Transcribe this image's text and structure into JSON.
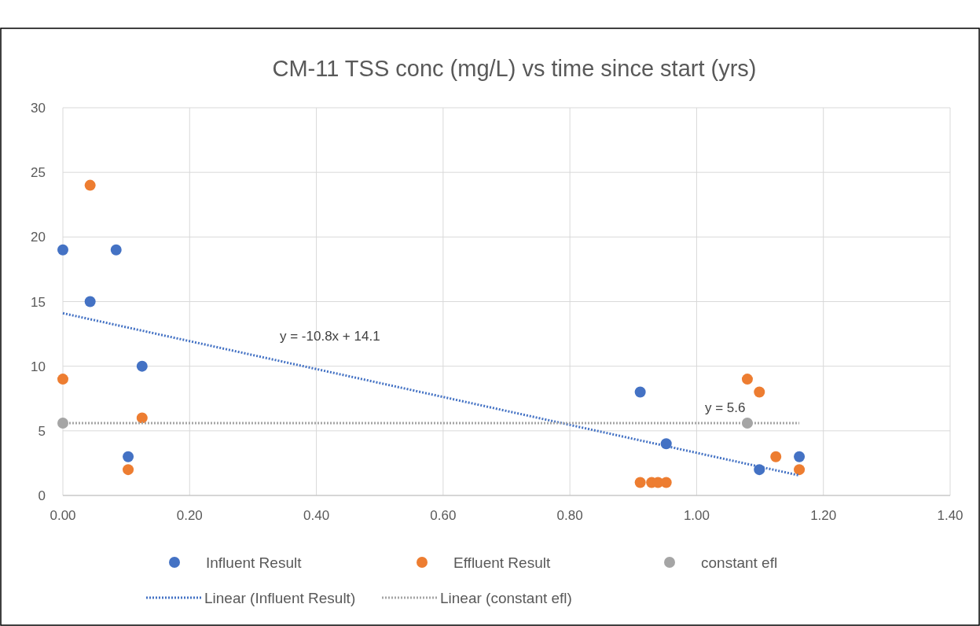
{
  "chart_data": {
    "type": "scatter",
    "title": "CM-11 TSS conc (mg/L) vs time since start (yrs)",
    "xlim": [
      0,
      1.4
    ],
    "xticks": [
      {
        "value": 0,
        "label": "0.00"
      },
      {
        "value": 0.2,
        "label": "0.20"
      },
      {
        "value": 0.4,
        "label": "0.40"
      },
      {
        "value": 0.6,
        "label": "0.60"
      },
      {
        "value": 0.8,
        "label": "0.80"
      },
      {
        "value": 1,
        "label": "1.00"
      },
      {
        "value": 1.2,
        "label": "1.20"
      },
      {
        "value": 1.4,
        "label": "1.40"
      }
    ],
    "ylim": [
      0,
      30
    ],
    "yticks": [
      0,
      5,
      10,
      15,
      20,
      25,
      30
    ],
    "grid": true,
    "legend": "bottom",
    "marker": "circle",
    "series": [
      {
        "name": "Influent Result",
        "color": "#4472c4",
        "x": [
          0,
          0.043,
          0.084,
          0.103,
          0.125,
          0.911,
          0.952,
          1.099,
          1.162
        ],
        "values": [
          19,
          15,
          19,
          3,
          10,
          8,
          4,
          2,
          3
        ]
      },
      {
        "name": "Effluent Result",
        "color": "#ed7d31",
        "x": [
          0,
          0.043,
          0.103,
          0.125,
          0.911,
          0.929,
          0.939,
          0.952,
          1.08,
          1.099,
          1.125,
          1.162
        ],
        "values": [
          9,
          24,
          2,
          6,
          1,
          1,
          1,
          1,
          9,
          8,
          3,
          2
        ]
      },
      {
        "name": "constant efl",
        "color": "#a5a5a5",
        "x": [
          0,
          1.08
        ],
        "values": [
          5.6,
          5.6
        ]
      },
      {
        "name": "Linear (Influent Result)",
        "type": "line",
        "marker": "none",
        "line_style": "dotted",
        "color": "#4472c4",
        "x": [
          0,
          1.162
        ],
        "values": [
          14.1,
          1.55
        ]
      },
      {
        "name": "Linear (constant efl)",
        "type": "line",
        "marker": "none",
        "line_style": "dotted",
        "color": "#a5a5a5",
        "x": [
          0,
          1.162
        ],
        "values": [
          5.6,
          5.6
        ]
      }
    ],
    "annotations": [
      "y = -10.8x + 14.1",
      "y = 5.6"
    ]
  }
}
